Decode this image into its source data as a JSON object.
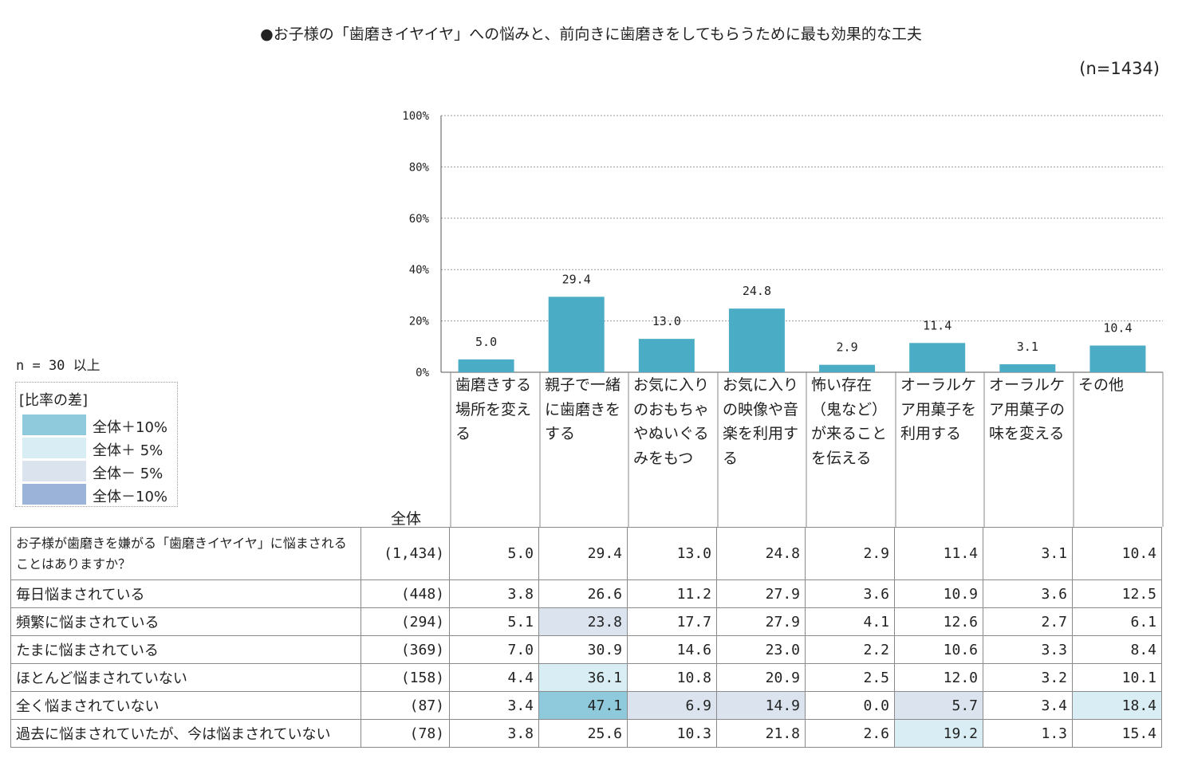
{
  "title": "●お子様の「歯磨きイヤイヤ」への悩みと、前向きに歯磨きをしてもらうために最も効果的な工夫",
  "n_total": "(n=1434)",
  "n_min": "n = 30 以上",
  "legend": {
    "title": "[比率の差]",
    "items": [
      {
        "label": "全体＋10%",
        "color": "#8ecadb"
      },
      {
        "label": "全体＋ 5%",
        "color": "#d9eef4"
      },
      {
        "label": "全体－ 5%",
        "color": "#dbe3ef"
      },
      {
        "label": "全体－10%",
        "color": "#9bb3d8"
      }
    ]
  },
  "bar_color": "#4bacc6",
  "chart_data": {
    "type": "bar",
    "categories": [
      "歯磨きする場所を変える",
      "親子で一緒に歯磨きをする",
      "お気に入りのおもちゃやぬいぐるみをもつ",
      "お気に入りの映像や音楽を利用する",
      "怖い存在（鬼など）が来ることを伝える",
      "オーラルケア用菓子を利用する",
      "オーラルケア用菓子の味を変える",
      "その他"
    ],
    "values": [
      5.0,
      29.4,
      13.0,
      24.8,
      2.9,
      11.4,
      3.1,
      10.4
    ],
    "value_labels": [
      "5.0",
      "29.4",
      "13.0",
      "24.8",
      "2.9",
      "11.4",
      "3.1",
      "10.4"
    ],
    "ylim": [
      0,
      100
    ],
    "yticks": [
      "0%",
      "20%",
      "40%",
      "60%",
      "80%",
      "100%"
    ],
    "title": "●お子様の「歯磨きイヤイヤ」への悩みと、前向きに歯磨きをしてもらうために最も効果的な工夫"
  },
  "table": {
    "column_header": "全体",
    "rows": [
      {
        "label": "お子様が歯磨きを嫌がる「歯磨きイヤイヤ」に悩まされることはありますか？",
        "n": "(1,434)",
        "values": [
          "5.0",
          "29.4",
          "13.0",
          "24.8",
          "2.9",
          "11.4",
          "3.1",
          "10.4"
        ],
        "shade": [
          null,
          null,
          null,
          null,
          null,
          null,
          null,
          null
        ]
      },
      {
        "label": "毎日悩まされている",
        "n": "(448)",
        "values": [
          "3.8",
          "26.6",
          "11.2",
          "27.9",
          "3.6",
          "10.9",
          "3.6",
          "12.5"
        ],
        "shade": [
          null,
          null,
          null,
          null,
          null,
          null,
          null,
          null
        ]
      },
      {
        "label": "頻繁に悩まされている",
        "n": "(294)",
        "values": [
          "5.1",
          "23.8",
          "17.7",
          "27.9",
          "4.1",
          "12.6",
          "2.7",
          "6.1"
        ],
        "shade": [
          null,
          "minus5",
          null,
          null,
          null,
          null,
          null,
          null
        ]
      },
      {
        "label": "たまに悩まされている",
        "n": "(369)",
        "values": [
          "7.0",
          "30.9",
          "14.6",
          "23.0",
          "2.2",
          "10.6",
          "3.3",
          "8.4"
        ],
        "shade": [
          null,
          null,
          null,
          null,
          null,
          null,
          null,
          null
        ]
      },
      {
        "label": "ほとんど悩まされていない",
        "n": "(158)",
        "values": [
          "4.4",
          "36.1",
          "10.8",
          "20.9",
          "2.5",
          "12.0",
          "3.2",
          "10.1"
        ],
        "shade": [
          null,
          "plus5",
          null,
          null,
          null,
          null,
          null,
          null
        ]
      },
      {
        "label": "全く悩まされていない",
        "n": "(87)",
        "values": [
          "3.4",
          "47.1",
          "6.9",
          "14.9",
          "0.0",
          "5.7",
          "3.4",
          "18.4"
        ],
        "shade": [
          null,
          "plus10",
          "minus5",
          "minus5",
          null,
          "minus5",
          null,
          "plus5"
        ]
      },
      {
        "label": "過去に悩まされていたが、今は悩まされていない",
        "n": "(78)",
        "values": [
          "3.8",
          "25.6",
          "10.3",
          "21.8",
          "2.6",
          "19.2",
          "1.3",
          "15.4"
        ],
        "shade": [
          null,
          null,
          null,
          null,
          null,
          "plus5",
          null,
          null
        ]
      }
    ]
  },
  "shade_colors": {
    "plus10": "#8ecadb",
    "plus5": "#d9eef4",
    "minus5": "#dbe3ef",
    "minus10": "#9bb3d8"
  }
}
